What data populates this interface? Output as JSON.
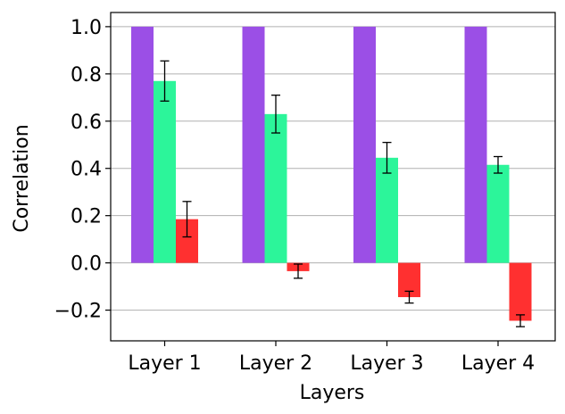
{
  "chart_data": {
    "type": "bar",
    "xlabel": "Layers",
    "ylabel": "Correlation",
    "categories": [
      "Layer 1",
      "Layer 2",
      "Layer 3",
      "Layer 4"
    ],
    "ylim": [
      -0.33,
      1.06
    ],
    "yticks": [
      -0.2,
      0.0,
      0.2,
      0.4,
      0.6,
      0.8,
      1.0
    ],
    "ytick_labels": [
      "−0.2",
      "0.0",
      "0.2",
      "0.4",
      "0.6",
      "0.8",
      "1.0"
    ],
    "grid": "horizontal",
    "legend": "none",
    "series": [
      {
        "color": "#9b4fe6",
        "values": [
          1.0,
          1.0,
          1.0,
          1.0
        ],
        "errors": [
          0,
          0,
          0,
          0
        ]
      },
      {
        "color": "#2cf59a",
        "values": [
          0.77,
          0.63,
          0.445,
          0.415
        ],
        "errors": [
          0.085,
          0.08,
          0.065,
          0.035
        ]
      },
      {
        "color": "#ff3030",
        "values": [
          0.185,
          -0.035,
          -0.145,
          -0.245
        ],
        "errors": [
          0.075,
          0.03,
          0.025,
          0.025
        ]
      }
    ]
  }
}
